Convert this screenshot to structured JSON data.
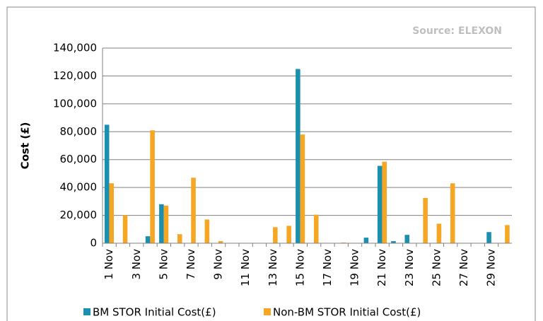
{
  "chart_data": {
    "type": "bar",
    "annotation": "Source: ELEXON",
    "y_label": "Cost (£)",
    "categories": [
      "1 Nov",
      null,
      "3 Nov",
      null,
      "5 Nov",
      null,
      "7 Nov",
      null,
      "9 Nov",
      null,
      "11 Nov",
      null,
      "13 Nov",
      null,
      "15 Nov",
      null,
      "17 Nov",
      null,
      "19 Nov",
      null,
      "21 Nov",
      null,
      "23 Nov",
      null,
      "25 Nov",
      null,
      "27 Nov",
      null,
      "29 Nov",
      null
    ],
    "series": [
      {
        "name": "BM STOR Initial Cost(£)",
        "color": "#1b8fae",
        "values": [
          85000,
          0,
          0,
          5000,
          28000,
          0,
          0,
          0,
          0,
          0,
          0,
          0,
          0,
          0,
          125000,
          0,
          0,
          0,
          0,
          4000,
          55500,
          1500,
          6000,
          0,
          0,
          0,
          0,
          0,
          8000,
          0
        ]
      },
      {
        "name": "Non-BM STOR Initial Cost(£)",
        "color": "#f5a623",
        "values": [
          43000,
          20000,
          0,
          81000,
          27000,
          6500,
          47000,
          17000,
          1500,
          0,
          0,
          0,
          11500,
          12500,
          78000,
          20500,
          0,
          500,
          0,
          0,
          58500,
          0,
          0,
          32500,
          14000,
          43000,
          0,
          0,
          0,
          13000
        ]
      }
    ],
    "ylim": [
      0,
      140000
    ],
    "yticks": [
      0,
      {
        "value": 20000,
        "label": "20,000"
      },
      {
        "value": 40000,
        "label": "40,000"
      },
      {
        "value": 60000,
        "label": "60,000"
      },
      {
        "value": 80000,
        "label": "80,000"
      },
      {
        "value": 100000,
        "label": "100,000"
      },
      {
        "value": 120000,
        "label": "120,000"
      },
      {
        "value": 140000,
        "label": "140,000"
      }
    ],
    "grid": true,
    "legend": "bottom"
  }
}
